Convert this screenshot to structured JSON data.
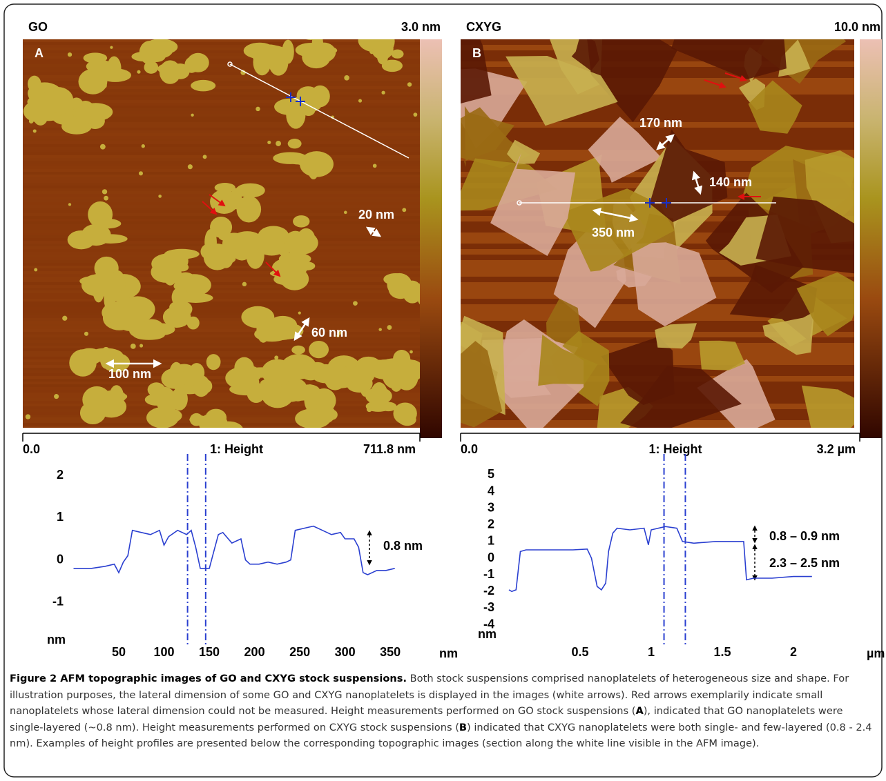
{
  "panels": [
    {
      "label": "A",
      "title": "GO",
      "scale_max": "3.0 nm",
      "axis_start": "0.0",
      "axis_title": "1: Height",
      "axis_end": "711.8 nm",
      "annotations": [
        "20 nm",
        "60 nm",
        "100 nm"
      ]
    },
    {
      "label": "B",
      "title": "CXYG",
      "scale_max": "10.0 nm",
      "axis_start": "0.0",
      "axis_title": "1: Height",
      "axis_end": "3.2 µm",
      "annotations": [
        "170 nm",
        "140 nm",
        "350 nm"
      ]
    }
  ],
  "chart_data": [
    {
      "type": "line",
      "color": "#2a3fd0",
      "x_unit": "nm",
      "y_unit": "nm",
      "x": [
        0,
        20,
        35,
        45,
        50,
        55,
        60,
        65,
        75,
        85,
        95,
        100,
        105,
        115,
        125,
        130,
        135,
        140,
        150,
        155,
        160,
        165,
        175,
        185,
        190,
        195,
        205,
        215,
        225,
        235,
        240,
        245,
        255,
        265,
        275,
        285,
        295,
        300,
        310,
        315,
        320,
        325,
        335,
        345,
        355
      ],
      "values": [
        -0.2,
        -0.2,
        -0.15,
        -0.1,
        -0.3,
        -0.05,
        0.1,
        0.7,
        0.65,
        0.6,
        0.7,
        0.35,
        0.55,
        0.7,
        0.6,
        0.7,
        0.3,
        -0.2,
        -0.2,
        0.2,
        0.6,
        0.65,
        0.4,
        0.5,
        0.0,
        -0.1,
        -0.1,
        -0.05,
        -0.1,
        -0.05,
        0.0,
        0.7,
        0.75,
        0.8,
        0.7,
        0.6,
        0.65,
        0.5,
        0.5,
        0.3,
        -0.3,
        -0.35,
        -0.25,
        -0.25,
        -0.2
      ],
      "cursors": [
        126,
        146
      ],
      "xlim": [
        0,
        385
      ],
      "ylim": [
        -1.9,
        2.05
      ],
      "xticks": [
        50,
        100,
        150,
        200,
        250,
        300,
        350
      ],
      "yticks": [
        2,
        1,
        0,
        -1
      ],
      "annotations": [
        "0.8 nm"
      ]
    },
    {
      "type": "line",
      "color": "#2a3fd0",
      "x_unit": "µm",
      "y_unit": "nm",
      "x": [
        0,
        0.02,
        0.05,
        0.08,
        0.12,
        0.3,
        0.45,
        0.55,
        0.58,
        0.62,
        0.65,
        0.68,
        0.7,
        0.73,
        0.76,
        0.85,
        0.95,
        0.98,
        1.0,
        1.1,
        1.18,
        1.22,
        1.3,
        1.45,
        1.6,
        1.65,
        1.67,
        1.72,
        1.85,
        2.0,
        2.13
      ],
      "values": [
        -1.9,
        -2.0,
        -1.9,
        0.4,
        0.5,
        0.5,
        0.5,
        0.55,
        0,
        -1.7,
        -1.9,
        -1.5,
        0.4,
        1.5,
        1.8,
        1.7,
        1.8,
        0.8,
        1.7,
        1.9,
        1.8,
        1.0,
        0.9,
        1.0,
        1.0,
        1.0,
        -1.3,
        -1.2,
        -1.2,
        -1.1,
        -1.1
      ],
      "cursors": [
        1.09,
        1.24
      ],
      "xlim": [
        0,
        2.5
      ],
      "ylim": [
        -4.6,
        5.1
      ],
      "xticks": [
        0.5,
        1,
        1.5,
        2
      ],
      "yticks": [
        5,
        4,
        3,
        2,
        1,
        0,
        -1,
        -2,
        -3,
        -4
      ],
      "annotations": [
        "0.8 – 0.9 nm",
        "2.3 – 2.5 nm"
      ]
    }
  ],
  "caption": {
    "segments": [
      "Figure 2 AFM topographic images of GO and CXYG stock suspensions.",
      " Both stock suspensions comprised nanoplatelets of heterogeneous size and shape. For illustration purposes, the lateral dimension of some GO and CXYG nanoplatelets is displayed in the images (white arrows). Red arrows exemplarily indicate small nanoplatelets whose lateral dimension could not be measured. Height measurements performed on GO stock suspensions (",
      "A",
      "), indicated that GO nanoplatelets were single-layered (~0.8 nm). Height measurements performed on CXYG stock suspensions (",
      "B",
      ") indicated that CXYG nanoplatelets were both single- and few-layered (0.8 - 2.4 nm). Examples of height profiles are presented below the corresponding topographic images (section along the white line visible in the AFM image)."
    ]
  }
}
